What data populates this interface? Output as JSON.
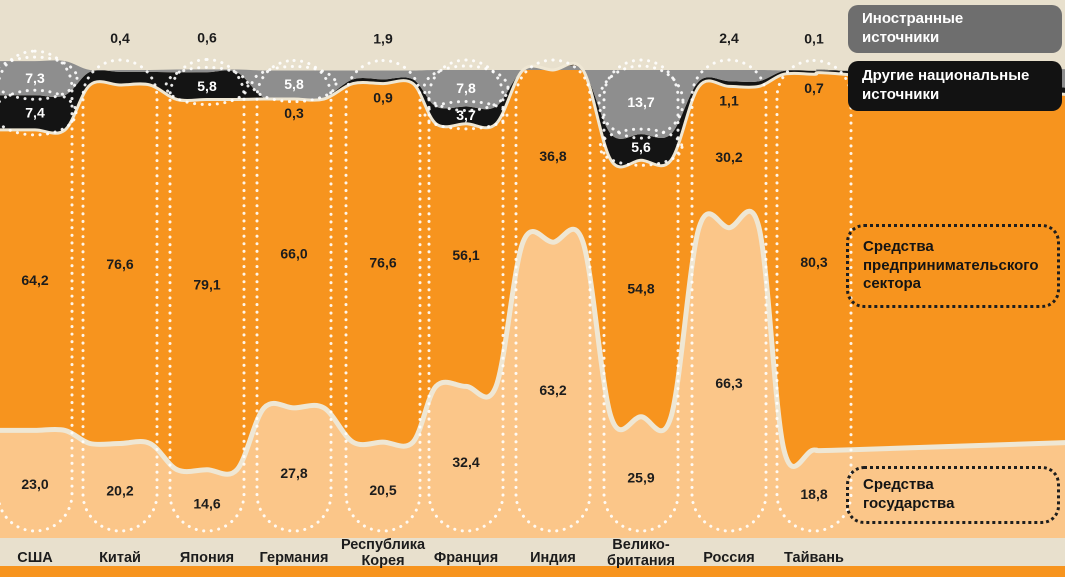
{
  "colors": {
    "background": "#e8e0cd",
    "foreign_band": "#8e8e8e",
    "other_band": "#141414",
    "business_band": "#f7941e",
    "government_band": "#fbc689",
    "separator": "#efe7d4",
    "bottom_strip": "#f7941e",
    "label_dark": "#1c1c1c",
    "label_light": "#ffffff",
    "dotted_outline": "#ffffff"
  },
  "legend": {
    "foreign": "Иностранные\nисточники",
    "other_national": "Другие национальные\nисточники",
    "business": "Средства\nпредпринимательского\nсектора",
    "government": "Средства\nгосударства"
  },
  "chart_data": {
    "type": "area",
    "variant": "stacked-percentage-stream",
    "unit": "%",
    "value_format": "comma-decimal",
    "legend_position": "right",
    "categories": [
      "США",
      "Китай",
      "Япония",
      "Германия",
      "Республика\nКорея",
      "Франция",
      "Индия",
      "Велико-\nбритания",
      "Россия",
      "Тайвань"
    ],
    "series": [
      {
        "name": "Средства государства",
        "values": [
          23.0,
          20.2,
          14.6,
          27.8,
          20.5,
          32.4,
          63.2,
          25.9,
          66.3,
          18.8
        ],
        "labels": [
          "23,0",
          "20,2",
          "14,6",
          "27,8",
          "20,5",
          "32,4",
          "63,2",
          "25,9",
          "66,3",
          "18,8"
        ]
      },
      {
        "name": "Средства предпринимательского сектора",
        "values": [
          64.2,
          76.6,
          79.1,
          66.0,
          76.6,
          56.1,
          36.8,
          54.8,
          30.2,
          80.3
        ],
        "labels": [
          "64,2",
          "76,6",
          "79,1",
          "66,0",
          "76,6",
          "56,1",
          "36,8",
          "54,8",
          "30,2",
          "80,3"
        ]
      },
      {
        "name": "Другие национальные источники",
        "values": [
          7.4,
          2.8,
          5.8,
          0.3,
          0.9,
          3.7,
          0.0,
          5.6,
          1.1,
          0.7
        ],
        "labels": [
          "7,4",
          "",
          "5,8",
          "0,3",
          "0,9",
          "3,7",
          "",
          "5,6",
          "1,1",
          "0,7"
        ]
      },
      {
        "name": "Иностранные источники",
        "values": [
          7.3,
          0.4,
          0.6,
          5.8,
          1.9,
          7.8,
          0.0,
          13.7,
          2.4,
          0.1
        ],
        "labels": [
          "7,3",
          "0,4",
          "0,6",
          "5,8",
          "1,9",
          "7,8",
          "",
          "13,7",
          "2,4",
          "0,1"
        ]
      }
    ]
  }
}
